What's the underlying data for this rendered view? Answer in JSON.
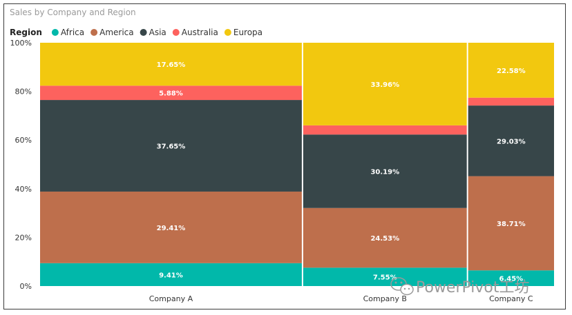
{
  "chart_data": {
    "type": "bar",
    "subtype": "mekko-100-percent-stacked",
    "title": "Sales by Company and Region",
    "legend_title": "Region",
    "legend_position": "top-left",
    "categories": [
      "Company A",
      "Company B",
      "Company C"
    ],
    "category_width_shares": [
      0.512,
      0.32,
      0.168
    ],
    "series": [
      {
        "name": "Africa",
        "color": "#01B8AA",
        "values": [
          9.41,
          7.55,
          6.45
        ],
        "labels": [
          "9.41%",
          "7.55%",
          "6.45%"
        ]
      },
      {
        "name": "America",
        "color": "#BE6F4C",
        "values": [
          29.41,
          24.53,
          38.71
        ],
        "labels": [
          "29.41%",
          "24.53%",
          "38.71%"
        ]
      },
      {
        "name": "Asia",
        "color": "#374649",
        "values": [
          37.65,
          30.19,
          29.03
        ],
        "labels": [
          "37.65%",
          "30.19%",
          "29.03%"
        ]
      },
      {
        "name": "Australia",
        "color": "#FD625E",
        "values": [
          5.88,
          3.77,
          3.23
        ],
        "labels": [
          "5.88%",
          "",
          ""
        ]
      },
      {
        "name": "Europa",
        "color": "#F2C80F",
        "values": [
          17.65,
          33.96,
          22.58
        ],
        "labels": [
          "17.65%",
          "33.96%",
          "22.58%"
        ]
      }
    ],
    "y_ticks": [
      "0%",
      "20%",
      "40%",
      "60%",
      "80%",
      "100%"
    ],
    "ylim": [
      0,
      100
    ],
    "grid": false
  },
  "watermark": {
    "text": "PowerPivot工坊",
    "icon": "wechat-icon"
  }
}
